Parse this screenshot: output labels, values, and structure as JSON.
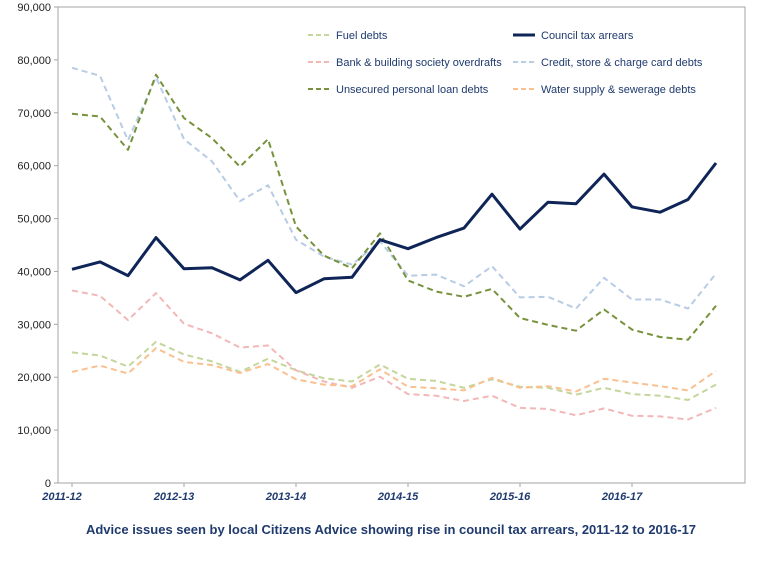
{
  "chart_data": {
    "type": "line",
    "title": "Advice issues seen by local Citizens Advice showing rise in council tax arrears, 2011-12 to 2016-17",
    "xlabel": "",
    "ylabel": "",
    "ylim": [
      0,
      90000
    ],
    "yticks": [
      0,
      10000,
      20000,
      30000,
      40000,
      50000,
      60000,
      70000,
      80000,
      90000
    ],
    "ytick_labels": [
      "0",
      "10,000",
      "20,000",
      "30,000",
      "40,000",
      "50,000",
      "60,000",
      "70,000",
      "80,000",
      "90,000"
    ],
    "x_tick_labels": [
      {
        "index": 0,
        "label": "2011-12"
      },
      {
        "index": 4,
        "label": "2012-13"
      },
      {
        "index": 8,
        "label": "2013-14"
      },
      {
        "index": 12,
        "label": "2014-15"
      },
      {
        "index": 16,
        "label": "2015-16"
      },
      {
        "index": 20,
        "label": "2016-17"
      }
    ],
    "num_points": 24,
    "grid": false,
    "legend_position": "top-right",
    "series": [
      {
        "name": "Fuel debts",
        "color": "#c3d69b",
        "dashed": true,
        "bold": false,
        "values": [
          24700,
          24100,
          22000,
          26700,
          24300,
          23000,
          21000,
          23500,
          21300,
          19800,
          19200,
          22400,
          19700,
          19300,
          18000,
          19600,
          18200,
          18000,
          16700,
          18000,
          16800,
          16500,
          15700,
          18600
        ]
      },
      {
        "name": "Council tax arrears",
        "color": "#0f2557",
        "dashed": false,
        "bold": true,
        "values": [
          40400,
          41800,
          39200,
          46400,
          40500,
          40700,
          38400,
          42100,
          36000,
          38600,
          38900,
          46000,
          44300,
          46400,
          48200,
          54600,
          48000,
          53100,
          52800,
          58400,
          52200,
          51200,
          53600,
          60500
        ]
      },
      {
        "name": "Bank & building society overdrafts",
        "color": "#f2b8b8",
        "dashed": true,
        "bold": false,
        "values": [
          36400,
          35400,
          30800,
          35900,
          30100,
          28300,
          25600,
          26000,
          21300,
          19200,
          18000,
          20100,
          16800,
          16500,
          15500,
          16500,
          14200,
          14000,
          12800,
          14100,
          12700,
          12600,
          12000,
          14200
        ]
      },
      {
        "name": "Credit, store & charge card debts",
        "color": "#b8cce4",
        "dashed": true,
        "bold": false,
        "values": [
          78500,
          77000,
          64800,
          76700,
          65000,
          60800,
          53300,
          56300,
          46000,
          42800,
          41300,
          45700,
          39200,
          39400,
          37200,
          41000,
          35100,
          35200,
          33000,
          38800,
          34700,
          34700,
          33000,
          39600
        ]
      },
      {
        "name": "Unsecured personal loan debts",
        "color": "#76923c",
        "dashed": true,
        "bold": false,
        "values": [
          69800,
          69300,
          63000,
          77200,
          69000,
          65200,
          59800,
          65000,
          48500,
          43000,
          40600,
          47200,
          38300,
          36200,
          35200,
          36700,
          31200,
          29900,
          28800,
          32800,
          29000,
          27600,
          27100,
          33500
        ]
      },
      {
        "name": "Water supply & sewerage debts",
        "color": "#fac08f",
        "dashed": true,
        "bold": false,
        "values": [
          21000,
          22200,
          20700,
          25500,
          22900,
          22300,
          20800,
          22500,
          19600,
          18600,
          18300,
          21500,
          18200,
          17900,
          17500,
          19900,
          18000,
          18300,
          17300,
          19700,
          19000,
          18300,
          17500,
          21200
        ]
      }
    ]
  },
  "legend": {
    "columns": [
      [
        "Fuel debts",
        "Bank & building society overdrafts",
        "Unsecured personal loan debts"
      ],
      [
        "Council tax arrears",
        "Credit, store & charge card debts",
        "Water supply & sewerage debts"
      ]
    ]
  },
  "caption": "Advice issues seen by local Citizens Advice showing rise in council tax arrears, 2011-12 to 2016-17"
}
